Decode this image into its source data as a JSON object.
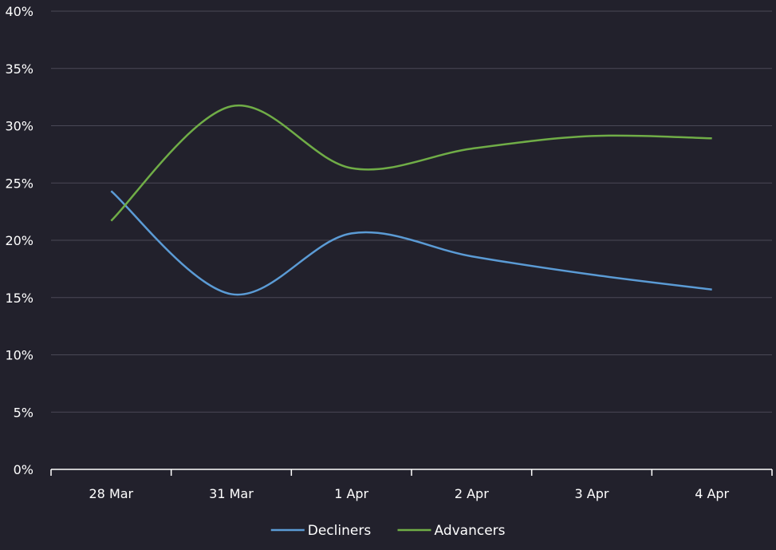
{
  "chart_data": {
    "type": "line",
    "title": "",
    "xlabel": "",
    "ylabel": "",
    "categories": [
      "28 Mar",
      "31 Mar",
      "1 Apr",
      "2 Apr",
      "3 Apr",
      "4 Apr"
    ],
    "series": [
      {
        "name": "Decliners",
        "color": "#5b9bd5",
        "values": [
          0.243,
          0.153,
          0.206,
          0.186,
          0.17,
          0.157
        ]
      },
      {
        "name": "Advancers",
        "color": "#70ad47",
        "values": [
          0.217,
          0.317,
          0.263,
          0.28,
          0.291,
          0.289
        ]
      }
    ],
    "ylim": [
      0,
      0.4
    ],
    "yticks": [
      0,
      0.05,
      0.1,
      0.15,
      0.2,
      0.25,
      0.3,
      0.35,
      0.4
    ],
    "ytick_labels": [
      "0%",
      "5%",
      "10%",
      "15%",
      "20%",
      "25%",
      "30%",
      "35%",
      "40%"
    ],
    "smooth": true,
    "grid": true,
    "legend_position": "bottom-center",
    "colors": {
      "background": "#22212c",
      "gridline": "#4a4956",
      "axis": "#ffffff",
      "text": "#ffffff"
    }
  }
}
